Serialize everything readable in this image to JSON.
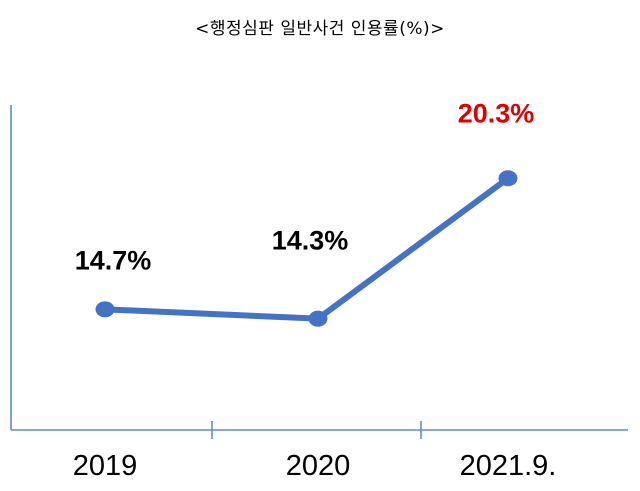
{
  "chart_data": {
    "type": "line",
    "title": "<행정심판  일반사건  인용률(%)>",
    "categories": [
      "2019",
      "2020",
      "2021.9."
    ],
    "series": [
      {
        "values": [
          14.7,
          14.3,
          20.3
        ],
        "labels": [
          "14.7%",
          "14.3%",
          "20.3%"
        ]
      }
    ],
    "xlabel": "",
    "ylabel": "",
    "grid": false,
    "colors": {
      "line": "#4472c4",
      "label": "#000000",
      "highlight_label": "#e00000",
      "axis": "#5b8ec9"
    }
  }
}
